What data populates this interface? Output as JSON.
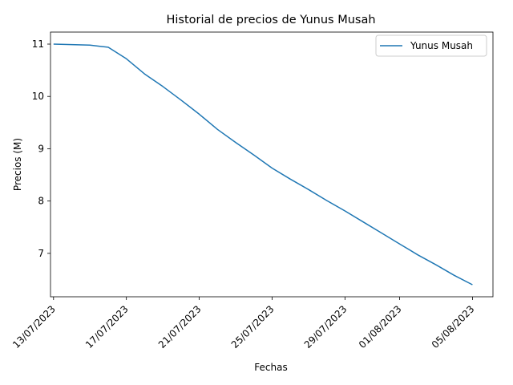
{
  "chart_data": {
    "type": "line",
    "title": "Historial de precios de Yunus Musah",
    "xlabel": "Fechas",
    "ylabel": "Precios (M)",
    "x": [
      "2023-07-13",
      "2023-07-15",
      "2023-07-16",
      "2023-07-17",
      "2023-07-18",
      "2023-07-19",
      "2023-07-20",
      "2023-07-21",
      "2023-07-22",
      "2023-07-23",
      "2023-07-24",
      "2023-07-25",
      "2023-07-26",
      "2023-07-27",
      "2023-07-28",
      "2023-07-29",
      "2023-07-30",
      "2023-07-31",
      "2023-08-01",
      "2023-08-02",
      "2023-08-03",
      "2023-08-04",
      "2023-08-05"
    ],
    "x_ticks": [
      "13/07/2023",
      "17/07/2023",
      "21/07/2023",
      "25/07/2023",
      "29/07/2023",
      "01/08/2023",
      "05/08/2023"
    ],
    "x_tick_dates": [
      "2023-07-13",
      "2023-07-17",
      "2023-07-21",
      "2023-07-25",
      "2023-07-29",
      "2023-08-01",
      "2023-08-05"
    ],
    "y_ticks": [
      7,
      8,
      9,
      10,
      11
    ],
    "xlim": [
      "2023-07-12T20:00:00",
      "2023-08-06T03:00:00"
    ],
    "ylim": [
      6.17,
      11.23
    ],
    "legend_position": "upper right",
    "line_color": "#1f77b4",
    "series": [
      {
        "name": "Yunus Musah",
        "values": [
          11.0,
          10.98,
          10.94,
          10.72,
          10.43,
          10.19,
          9.93,
          9.66,
          9.37,
          9.12,
          8.88,
          8.63,
          8.42,
          8.22,
          8.01,
          7.81,
          7.6,
          7.39,
          7.18,
          6.97,
          6.78,
          6.58,
          6.4
        ],
        "x_index": [
          0,
          1,
          2,
          3,
          4,
          5,
          6,
          7,
          8,
          9,
          10,
          11,
          12,
          13,
          14,
          15,
          16,
          17,
          18,
          19,
          20,
          21,
          22
        ]
      }
    ]
  }
}
